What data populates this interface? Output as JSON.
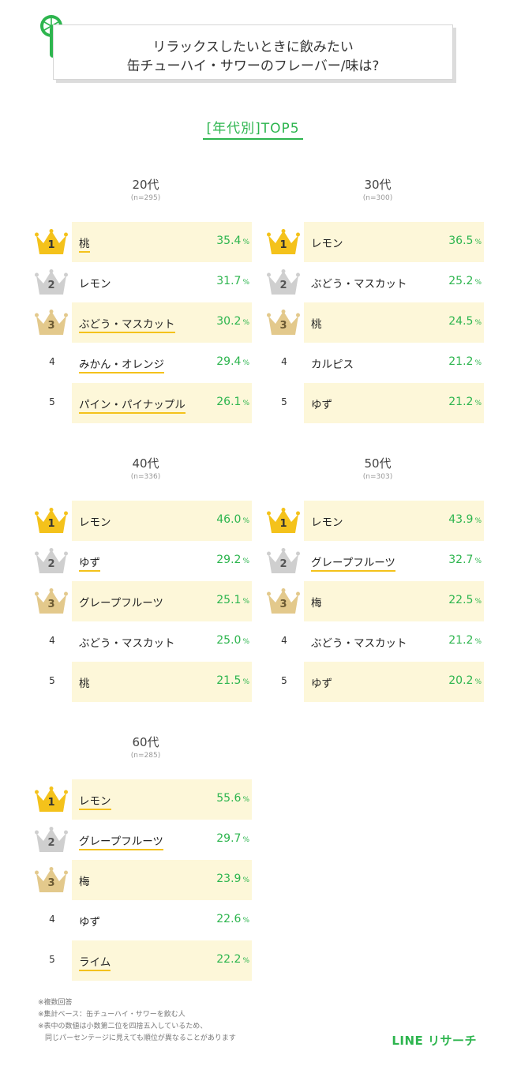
{
  "header": {
    "line1": "リラックスしたいときに飲みたい",
    "line2": "缶チューハイ・サワーのフレーバー/味は?"
  },
  "subtitle": "[年代別]TOP5",
  "colors": {
    "accent": "#2db54e",
    "highlight": "#fdf7d9",
    "underline": "#f4c21b",
    "gold": "#f4c21b",
    "silver": "#cfcfcf",
    "bronze": "#e3c98c"
  },
  "icons": {
    "logo": "drink-glass-icon",
    "rank1": "gold-crown-icon",
    "rank2": "silver-crown-icon",
    "rank3": "bronze-crown-icon"
  },
  "pct_unit": "%",
  "chart_data": [
    {
      "type": "table",
      "title": "20代",
      "n": "(n=295)",
      "rows": [
        {
          "rank": "1",
          "name": "桃",
          "value": "35.4",
          "underline": true
        },
        {
          "rank": "2",
          "name": "レモン",
          "value": "31.7",
          "underline": false
        },
        {
          "rank": "3",
          "name": "ぶどう・マスカット",
          "value": "30.2",
          "underline": true
        },
        {
          "rank": "4",
          "name": "みかん・オレンジ",
          "value": "29.4",
          "underline": true
        },
        {
          "rank": "5",
          "name": "パイン・パイナップル",
          "value": "26.1",
          "underline": true
        }
      ]
    },
    {
      "type": "table",
      "title": "30代",
      "n": "(n=300)",
      "rows": [
        {
          "rank": "1",
          "name": "レモン",
          "value": "36.5",
          "underline": false
        },
        {
          "rank": "2",
          "name": "ぶどう・マスカット",
          "value": "25.2",
          "underline": false
        },
        {
          "rank": "3",
          "name": "桃",
          "value": "24.5",
          "underline": false
        },
        {
          "rank": "4",
          "name": "カルピス",
          "value": "21.2",
          "underline": false
        },
        {
          "rank": "5",
          "name": "ゆず",
          "value": "21.2",
          "underline": false
        }
      ]
    },
    {
      "type": "table",
      "title": "40代",
      "n": "(n=336)",
      "rows": [
        {
          "rank": "1",
          "name": "レモン",
          "value": "46.0",
          "underline": false
        },
        {
          "rank": "2",
          "name": "ゆず",
          "value": "29.2",
          "underline": true
        },
        {
          "rank": "3",
          "name": "グレープフルーツ",
          "value": "25.1",
          "underline": false
        },
        {
          "rank": "4",
          "name": "ぶどう・マスカット",
          "value": "25.0",
          "underline": false
        },
        {
          "rank": "5",
          "name": "桃",
          "value": "21.5",
          "underline": false
        }
      ]
    },
    {
      "type": "table",
      "title": "50代",
      "n": "(n=303)",
      "rows": [
        {
          "rank": "1",
          "name": "レモン",
          "value": "43.9",
          "underline": false
        },
        {
          "rank": "2",
          "name": "グレープフルーツ",
          "value": "32.7",
          "underline": true
        },
        {
          "rank": "3",
          "name": "梅",
          "value": "22.5",
          "underline": false
        },
        {
          "rank": "4",
          "name": "ぶどう・マスカット",
          "value": "21.2",
          "underline": false
        },
        {
          "rank": "5",
          "name": "ゆず",
          "value": "20.2",
          "underline": false
        }
      ]
    },
    {
      "type": "table",
      "title": "60代",
      "n": "(n=285)",
      "rows": [
        {
          "rank": "1",
          "name": "レモン",
          "value": "55.6",
          "underline": true
        },
        {
          "rank": "2",
          "name": "グレープフルーツ",
          "value": "29.7",
          "underline": true
        },
        {
          "rank": "3",
          "name": "梅",
          "value": "23.9",
          "underline": false
        },
        {
          "rank": "4",
          "name": "ゆず",
          "value": "22.6",
          "underline": false
        },
        {
          "rank": "5",
          "name": "ライム",
          "value": "22.2",
          "underline": true
        }
      ]
    }
  ],
  "notes": [
    "※複数回答",
    "※集計ベース：缶チューハイ・サワーを飲む人",
    "※表中の数値は小数第二位を四捨五入しているため、",
    "　同じパーセンテージに見えても順位が異なることがあります"
  ],
  "brand": "LINE リサーチ"
}
